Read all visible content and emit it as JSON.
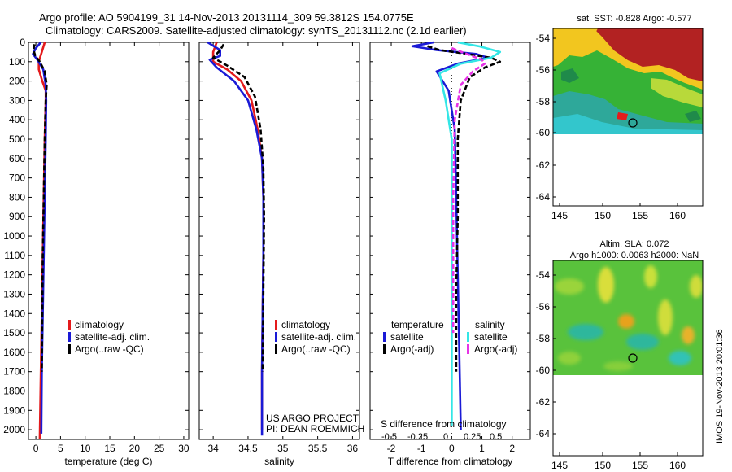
{
  "header": {
    "line1": "Argo profile: AO 5904199_31 14-Nov-2013 20131114_309 59.3812S 154.0775E",
    "line2": "Climatology: CARS2009. Satellite-adjusted climatology: synTS_20131112.nc (2.1d earlier)"
  },
  "colors": {
    "climatology": "#e41a1c",
    "satellite": "#1a1ad6",
    "argo": "#000000",
    "satellite_s": "#33e6e6",
    "argo_s": "#e633e6"
  },
  "chart_data": [
    {
      "type": "line",
      "name": "temperature-panel",
      "xlabel": "temperature (deg C)",
      "ylabel": "",
      "xlim": [
        -1.5,
        31
      ],
      "ylim": [
        2050,
        0
      ],
      "xticks": [
        0,
        5,
        10,
        15,
        20,
        25,
        30
      ],
      "yticks": [
        0,
        100,
        200,
        300,
        400,
        500,
        600,
        700,
        800,
        900,
        1000,
        1100,
        1200,
        1300,
        1400,
        1500,
        1600,
        1700,
        1800,
        1900,
        2000
      ],
      "legend": [
        "climatology",
        "satellite-adj. clim.",
        "Argo(..raw -QC)"
      ],
      "series": [
        {
          "name": "climatology",
          "style": "solid",
          "color_key": "climatology",
          "x": [
            1.8,
            1.2,
            0.6,
            0.6,
            1.3,
            2.0,
            2.0,
            1.8,
            1.6,
            1.4,
            1.2,
            1.0,
            0.8
          ],
          "y": [
            0,
            50,
            100,
            140,
            200,
            250,
            300,
            500,
            800,
            1100,
            1400,
            1700,
            2050
          ]
        },
        {
          "name": "satellite-adj. clim.",
          "style": "solid",
          "color_key": "satellite",
          "x": [
            1.0,
            0.0,
            -0.6,
            0.3,
            1.5,
            2.0,
            2.1,
            2.0,
            1.8,
            1.6,
            1.4,
            1.2,
            1.1
          ],
          "y": [
            0,
            30,
            60,
            90,
            140,
            220,
            300,
            500,
            800,
            1100,
            1400,
            1700,
            2020
          ]
        },
        {
          "name": "Argo(..raw -QC)",
          "style": "dashed",
          "color_key": "argo",
          "x": [
            -0.3,
            -0.5,
            -0.1,
            0.8,
            1.8,
            2.2,
            2.0,
            1.8,
            1.6,
            1.4,
            1.3,
            1.2
          ],
          "y": [
            10,
            40,
            70,
            100,
            150,
            220,
            300,
            500,
            800,
            1100,
            1400,
            1700
          ]
        }
      ]
    },
    {
      "type": "line",
      "name": "salinity-panel",
      "xlabel": "salinity",
      "ylabel": "",
      "xlim": [
        33.8,
        36.1
      ],
      "ylim": [
        2050,
        0
      ],
      "xticks": [
        34,
        34.5,
        35,
        35.5,
        36
      ],
      "xtick_labels": [
        "34",
        "34.5",
        "35",
        "35.5",
        "36"
      ],
      "legend": [
        "climatology",
        "satellite-adj. clim.",
        "Argo(..raw -QC)"
      ],
      "series": [
        {
          "name": "climatology",
          "style": "solid",
          "color_key": "climatology",
          "x": [
            34.05,
            34.0,
            34.0,
            34.2,
            34.4,
            34.55,
            34.64,
            34.7,
            34.72,
            34.72,
            34.71,
            34.7,
            34.7
          ],
          "y": [
            0,
            50,
            100,
            140,
            200,
            300,
            450,
            600,
            800,
            1100,
            1400,
            1700,
            2000
          ]
        },
        {
          "name": "satellite-adj. clim.",
          "style": "solid",
          "color_key": "satellite",
          "x": [
            33.92,
            34.1,
            34.1,
            33.95,
            34.05,
            34.3,
            34.5,
            34.62,
            34.7,
            34.72,
            34.72,
            34.71,
            34.7,
            34.7
          ],
          "y": [
            0,
            40,
            70,
            90,
            130,
            200,
            300,
            450,
            600,
            800,
            1100,
            1400,
            1700,
            2030
          ]
        },
        {
          "name": "Argo(..raw -QC)",
          "style": "dashed",
          "color_key": "argo",
          "x": [
            34.15,
            34.1,
            34.0,
            34.2,
            34.45,
            34.6,
            34.68,
            34.72,
            34.73,
            34.72,
            34.71
          ],
          "y": [
            10,
            40,
            80,
            120,
            180,
            280,
            450,
            650,
            900,
            1300,
            1700
          ]
        }
      ]
    },
    {
      "type": "line",
      "name": "difference-panel",
      "xlabel": "T difference from climatology",
      "ylabel": "",
      "xlim": [
        -2.7,
        2.6
      ],
      "ylim": [
        2050,
        0
      ],
      "xticks": [
        -2,
        -1,
        0,
        1,
        2
      ],
      "top_axis_label": "S difference from climatology",
      "top_axis_ticks": [
        "-0.5",
        "-0.25",
        "0",
        "0.25",
        "0.5"
      ],
      "legend": [
        "temperature",
        "satellite",
        "Argo(-adj)",
        "salinity",
        "satellite",
        "Argo(-adj)"
      ],
      "series": [
        {
          "name": "temperature satellite",
          "style": "solid",
          "color_key": "satellite",
          "x": [
            -0.6,
            -1.3,
            -0.5,
            0.8,
            1.2,
            0.2,
            -0.5,
            -0.1,
            0.1,
            0.15,
            0.2,
            0.25,
            0.3
          ],
          "y": [
            0,
            20,
            40,
            60,
            80,
            110,
            150,
            250,
            450,
            800,
            1200,
            1600,
            2000
          ]
        },
        {
          "name": "temperature Argo(-adj)",
          "style": "dashed",
          "color_key": "argo",
          "x": [
            -0.8,
            -0.4,
            0.5,
            1.3,
            1.6,
            1.1,
            0.6,
            0.3,
            0.2,
            0.2,
            0.15,
            0.15
          ],
          "y": [
            20,
            40,
            60,
            80,
            100,
            130,
            180,
            300,
            500,
            900,
            1300,
            1700
          ]
        },
        {
          "name": "salinity satellite",
          "style": "solid",
          "color_key": "satellite_s",
          "x": [
            0.2,
            0.9,
            1.6,
            1.3,
            0.3,
            -0.4,
            -0.2,
            0.0,
            0.0,
            0.0,
            0.0,
            0.0
          ],
          "y": [
            0,
            20,
            50,
            80,
            110,
            160,
            300,
            500,
            800,
            1200,
            1600,
            1980
          ]
        },
        {
          "name": "salinity Argo(-adj)",
          "style": "dashed",
          "color_key": "argo_s",
          "x": [
            0.0,
            0.5,
            1.0,
            1.1,
            0.7,
            0.3,
            0.1,
            0.05,
            0.05
          ],
          "y": [
            30,
            60,
            90,
            110,
            150,
            220,
            400,
            800,
            1500
          ]
        }
      ]
    }
  ],
  "maps": {
    "sst": {
      "title": "sat. SST: -0.828 Argo: -0.577",
      "yticks": [
        "-54",
        "-56",
        "-58",
        "-60",
        "-62",
        "-64"
      ],
      "xticks": [
        "145",
        "150",
        "155",
        "160"
      ]
    },
    "sla": {
      "title_line1": "Altim. SLA: 0.072",
      "title_line2": "Argo h1000: 0.0063 h2000: NaN",
      "yticks": [
        "-54",
        "-56",
        "-58",
        "-60",
        "-62",
        "-64"
      ],
      "xticks": [
        "145",
        "150",
        "155",
        "160"
      ]
    }
  },
  "annotation": {
    "project_line1": "US ARGO PROJECT",
    "project_line2": "PI: DEAN ROEMMICH",
    "side_text": "IMOS 19-Nov-2013 20:01:36"
  }
}
